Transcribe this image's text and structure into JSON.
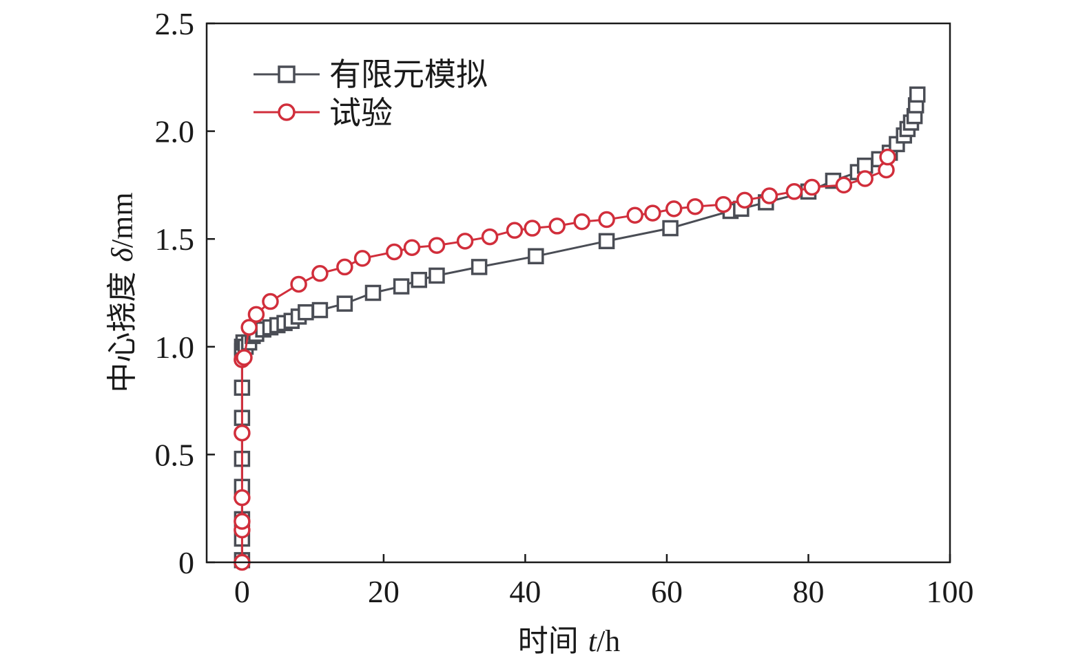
{
  "chart_data": {
    "type": "line",
    "title": "",
    "xlabel": {
      "prefix": "时间 ",
      "symbol": "t",
      "unit": "/h"
    },
    "ylabel": {
      "prefix": "中心挠度 ",
      "symbol": "δ",
      "unit": "/mm"
    },
    "xlim": [
      -5,
      100
    ],
    "ylim": [
      0,
      2.5
    ],
    "xticks": [
      0,
      20,
      40,
      60,
      80,
      100
    ],
    "xtick_labels": [
      "0",
      "20",
      "40",
      "60",
      "80",
      "100"
    ],
    "yticks": [
      0,
      0.5,
      1.0,
      1.5,
      2.0,
      2.5
    ],
    "ytick_labels": [
      "0",
      "0.5",
      "1.0",
      "1.5",
      "2.0",
      "2.5"
    ],
    "legend_position": "top-left",
    "series": [
      {
        "name": "有限元模拟",
        "color": "#4a4d55",
        "marker": "square",
        "x": [
          0,
          0,
          0,
          0,
          0,
          0,
          0,
          0,
          0,
          0.2,
          0.5,
          1,
          1.5,
          2,
          3,
          4,
          5,
          6,
          7,
          8,
          9,
          11,
          14.5,
          18.5,
          22.5,
          25,
          27.5,
          33.5,
          41.5,
          51.5,
          60.5,
          69,
          70.5,
          74,
          80,
          83.5,
          87,
          88,
          90,
          91.5,
          92.5,
          93.5,
          94,
          94.5,
          95,
          95.2,
          95.4
        ],
        "y": [
          0.01,
          0.11,
          0.2,
          0.35,
          0.48,
          0.67,
          0.81,
          0.98,
          1.0,
          1.02,
          1.0,
          1.02,
          1.05,
          1.06,
          1.08,
          1.09,
          1.1,
          1.11,
          1.12,
          1.14,
          1.16,
          1.17,
          1.2,
          1.25,
          1.28,
          1.31,
          1.33,
          1.37,
          1.42,
          1.49,
          1.55,
          1.63,
          1.64,
          1.67,
          1.72,
          1.77,
          1.81,
          1.84,
          1.87,
          1.9,
          1.94,
          1.98,
          2.01,
          2.04,
          2.07,
          2.12,
          2.17
        ]
      },
      {
        "name": "试验",
        "color": "#d12e3b",
        "marker": "circle",
        "x": [
          0,
          0,
          0,
          0,
          0,
          0,
          0.3,
          1,
          2,
          4,
          8,
          11,
          14.5,
          17,
          21.5,
          24,
          27.5,
          31.5,
          35,
          38.5,
          41,
          44.5,
          48,
          51.5,
          55.5,
          58,
          61,
          64,
          68,
          71,
          74.5,
          78,
          80.5,
          85,
          88,
          91,
          91.2
        ],
        "y": [
          0.0,
          0.15,
          0.19,
          0.3,
          0.6,
          0.94,
          0.95,
          1.09,
          1.15,
          1.21,
          1.29,
          1.34,
          1.37,
          1.41,
          1.44,
          1.46,
          1.47,
          1.49,
          1.51,
          1.54,
          1.55,
          1.56,
          1.58,
          1.59,
          1.61,
          1.62,
          1.64,
          1.65,
          1.66,
          1.68,
          1.7,
          1.72,
          1.74,
          1.75,
          1.78,
          1.82,
          1.88
        ]
      }
    ]
  }
}
